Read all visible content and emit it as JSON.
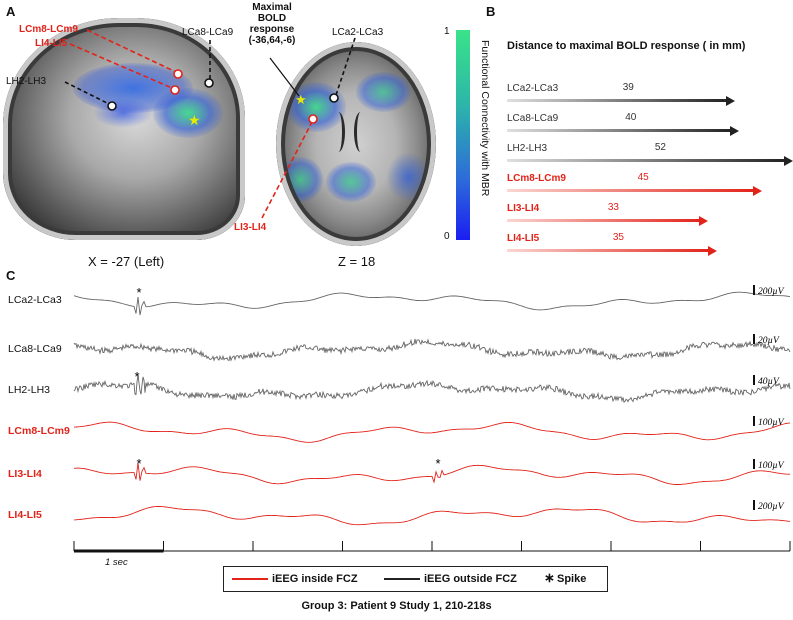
{
  "panel_a": {
    "letter": "A",
    "sagittal_caption": "X = -27 (Left)",
    "axial_caption": "Z = 18",
    "labels": {
      "lcm8_lcm9": "LCm8-LCm9",
      "li4_li5": "LI4-LI5",
      "lca8_lca9": "LCa8-LCa9",
      "lh2_lh3": "LH2-LH3",
      "maximal_bold_line1": "Maximal",
      "maximal_bold_line2": "BOLD",
      "maximal_bold_line3": "response",
      "maximal_bold_coords": "(-36,64,-6)",
      "lca2_lca3": "LCa2-LCa3",
      "li3_li4": "LI3-LI4"
    },
    "colorbar": {
      "max": "1",
      "min": "0",
      "label": "Functional Connectivity with MBR",
      "colors": [
        "#3ae389",
        "#2cb7a8",
        "#2d6ed8",
        "#1a1ef2"
      ]
    }
  },
  "panel_b": {
    "letter": "B",
    "title": "Distance to maximal BOLD response ( in mm)",
    "rows": [
      {
        "label": "LCa2-LCa3",
        "value": 39,
        "color": "dark"
      },
      {
        "label": "LCa8-LCa9",
        "value": 40,
        "color": "dark"
      },
      {
        "label": "LH2-LH3",
        "value": 52,
        "color": "dark"
      },
      {
        "label": "LCm8-LCm9",
        "value": 45,
        "color": "red"
      },
      {
        "label": "LI3-LI4",
        "value": 33,
        "color": "red"
      },
      {
        "label": "LI4-LI5",
        "value": 35,
        "color": "red"
      }
    ]
  },
  "panel_c": {
    "letter": "C",
    "traces": [
      {
        "label": "LCa2-LCa3",
        "scale": "200µV",
        "color": "dark",
        "spikes": true
      },
      {
        "label": "LCa8-LCa9",
        "scale": "20µV",
        "color": "dark",
        "spikes": false
      },
      {
        "label": "LH2-LH3",
        "scale": "40µV",
        "color": "dark",
        "spikes": true
      },
      {
        "label": "LCm8-LCm9",
        "scale": "100µV",
        "color": "red",
        "spikes": false
      },
      {
        "label": "LI3-LI4",
        "scale": "100µV",
        "color": "red",
        "spikes": true
      },
      {
        "label": "LI4-LI5",
        "scale": "200µV",
        "color": "red",
        "spikes": false
      }
    ],
    "time_scale": "1 sec",
    "spike_marker": "*"
  },
  "legend": {
    "inside": "iEEG inside FCZ",
    "outside": "iEEG outside FCZ",
    "spike_symbol": "∗",
    "spike": "Spike"
  },
  "footer": "Group 3: Patient 9 Study 1, 210-218s",
  "colors": {
    "red": "#e2231a",
    "dark": "#333333",
    "trace_dark": "#666666"
  }
}
